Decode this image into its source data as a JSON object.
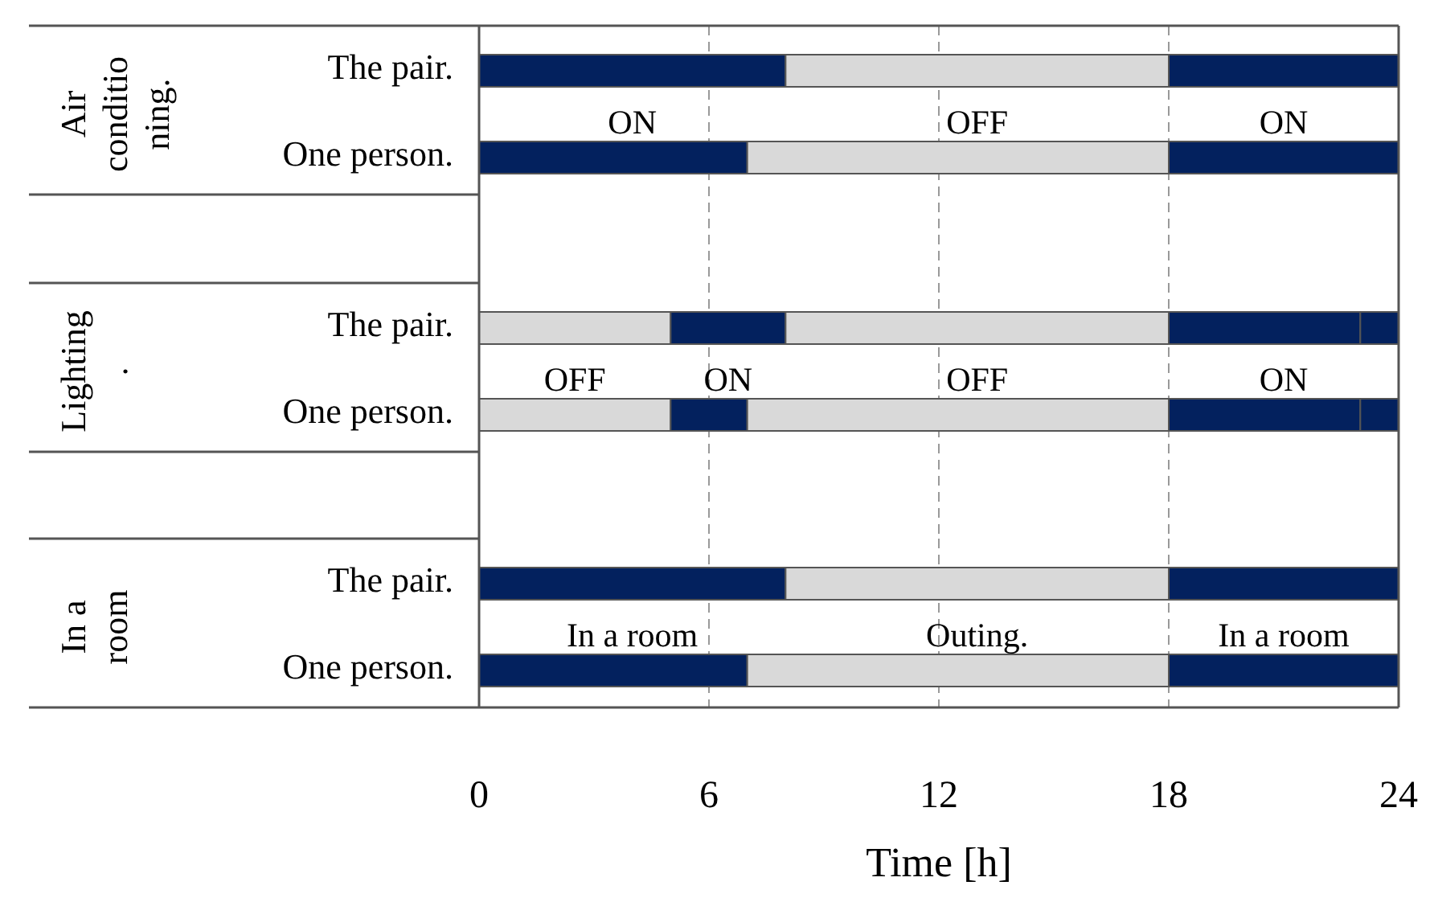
{
  "chart_data": [
    {
      "type": "bar",
      "orientation": "horizontal",
      "title": "Air conditioning.",
      "categories": [
        "The pair.",
        "One person."
      ],
      "xlim": [
        0,
        24
      ],
      "xticks": [
        0,
        6,
        12,
        18,
        24
      ],
      "tick_labels": "y",
      "grid": "x",
      "annotations": [
        "ON",
        "OFF",
        "ON"
      ],
      "series": [
        {
          "color": "#03215e",
          "base": [
            0,
            0
          ],
          "values": [
            8,
            7
          ]
        },
        {
          "color": "#d9d9d9",
          "base": [
            8,
            7
          ],
          "values": [
            10,
            11
          ]
        },
        {
          "color": "#03215e",
          "base": [
            18,
            18
          ],
          "values": [
            6,
            6
          ]
        }
      ]
    },
    {
      "type": "bar",
      "orientation": "horizontal",
      "title": "Lighting.",
      "categories": [
        "The pair.",
        "One person."
      ],
      "xlim": [
        0,
        24
      ],
      "xticks": [
        0,
        6,
        12,
        18,
        24
      ],
      "tick_labels": "y",
      "grid": "x",
      "annotations": [
        "OFF",
        "ON",
        "OFF",
        "ON"
      ],
      "series": [
        {
          "color": "#d9d9d9",
          "base": [
            0,
            0
          ],
          "values": [
            5,
            5
          ]
        },
        {
          "color": "#03215e",
          "base": [
            5,
            5
          ],
          "values": [
            3,
            2
          ]
        },
        {
          "color": "#d9d9d9",
          "base": [
            8,
            7
          ],
          "values": [
            10,
            11
          ]
        },
        {
          "color": "#03215e",
          "base": [
            18,
            18
          ],
          "values": [
            5,
            5
          ]
        },
        {
          "color": "#03215e",
          "base": [
            23,
            23
          ],
          "values": [
            1,
            1
          ]
        }
      ]
    },
    {
      "type": "bar",
      "orientation": "horizontal",
      "title": "In a room",
      "categories": [
        "The pair.",
        "One person."
      ],
      "xlim": [
        0,
        24
      ],
      "xticks": [
        0,
        6,
        12,
        18,
        24
      ],
      "xlabel": "Time [h]",
      "grid": "x",
      "annotations": [
        "In a room",
        "Outing.",
        "In a room"
      ],
      "series": [
        {
          "color": "#03215e",
          "base": [
            0,
            0
          ],
          "values": [
            8,
            7
          ]
        },
        {
          "color": "#d9d9d9",
          "base": [
            8,
            7
          ],
          "values": [
            10,
            11
          ]
        },
        {
          "color": "#03215e",
          "base": [
            18,
            18
          ],
          "values": [
            6,
            6
          ]
        }
      ]
    }
  ]
}
